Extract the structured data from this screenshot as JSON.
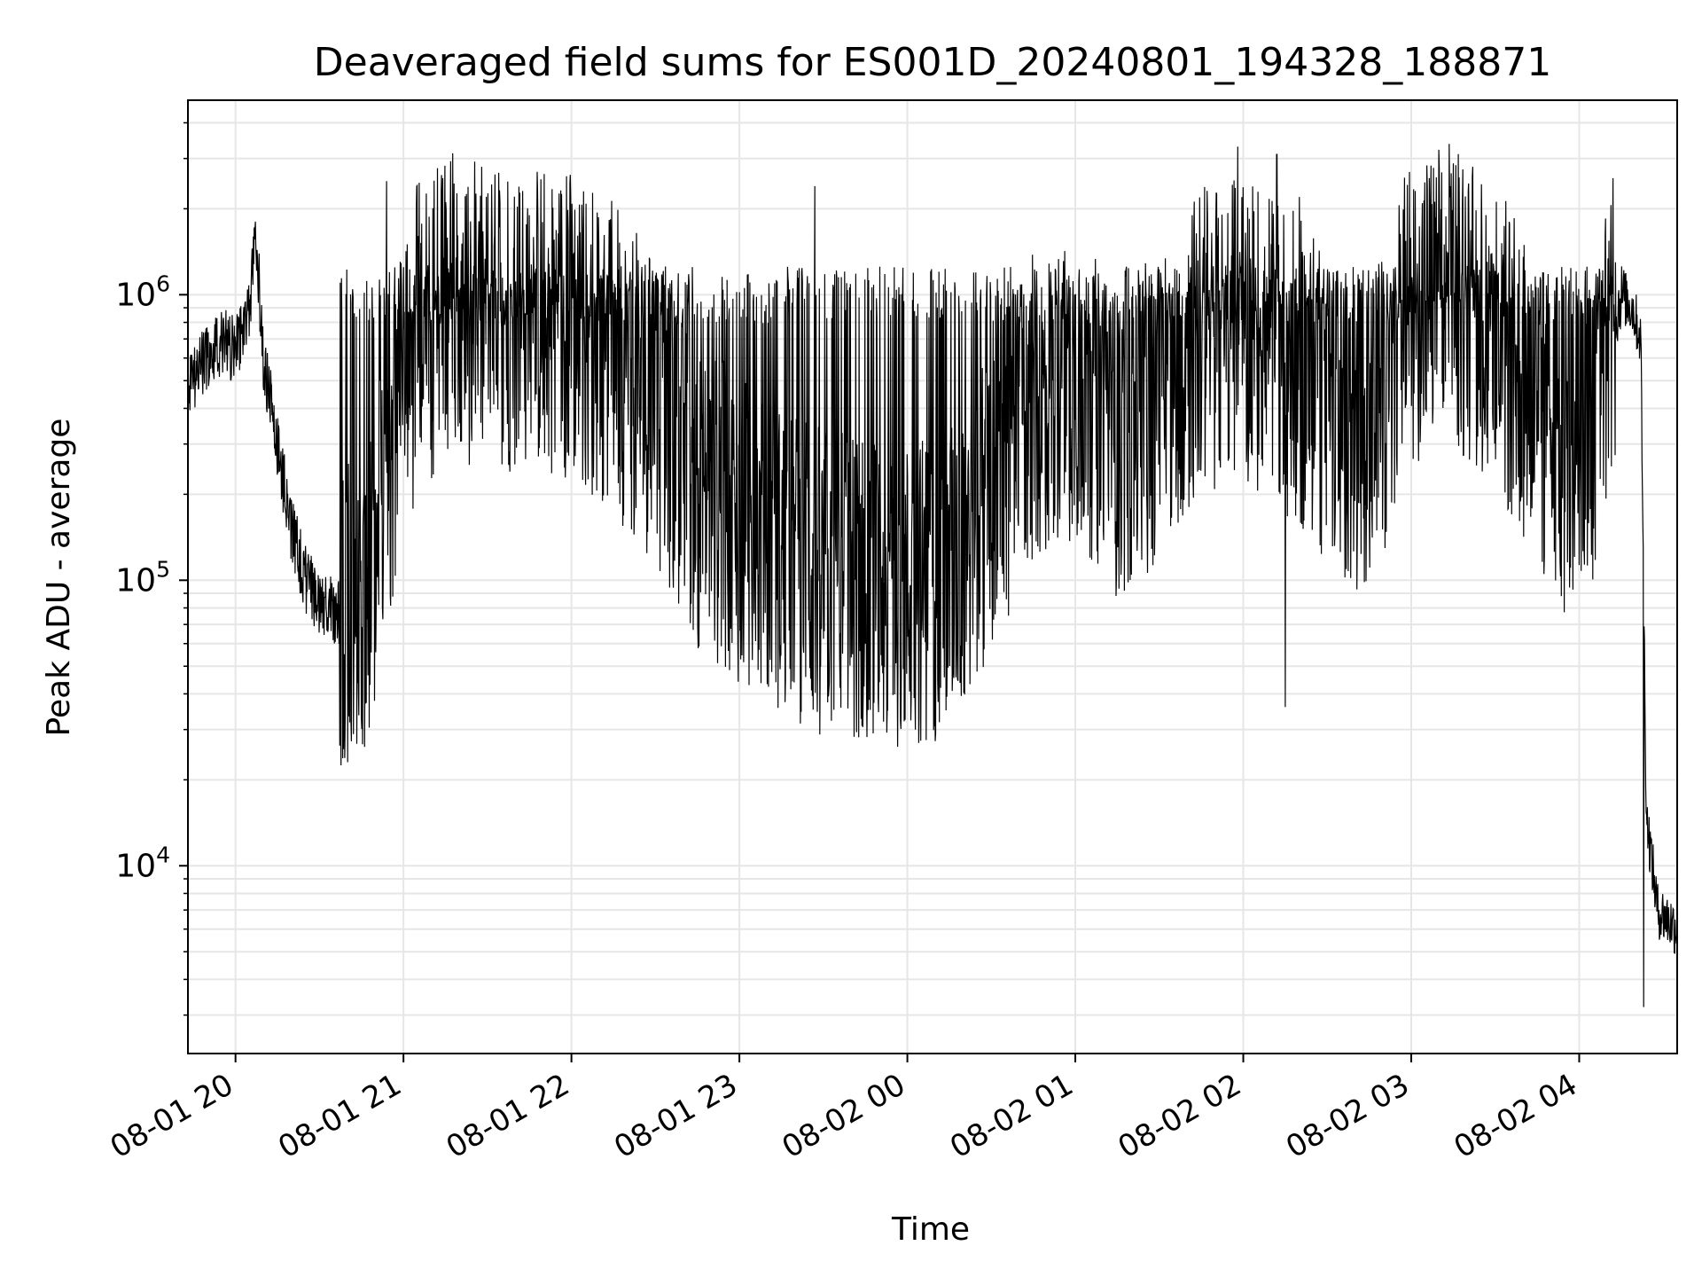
{
  "chart_data": {
    "type": "line",
    "title": "Deaveraged field sums for ES001D_20240801_194328_188871",
    "xlabel": "Time",
    "ylabel": "Peak ADU - average",
    "yscale": "log",
    "ylim": [
      2200,
      4800000
    ],
    "xlim": [
      "2024-08-01 19:43",
      "2024-08-02 04:35"
    ],
    "grid": true,
    "x_ticks": [
      {
        "time": "2024-08-01 20:00",
        "label": "08-01 20"
      },
      {
        "time": "2024-08-01 21:00",
        "label": "08-01 21"
      },
      {
        "time": "2024-08-01 22:00",
        "label": "08-01 22"
      },
      {
        "time": "2024-08-01 23:00",
        "label": "08-01 23"
      },
      {
        "time": "2024-08-02 00:00",
        "label": "08-02 00"
      },
      {
        "time": "2024-08-02 01:00",
        "label": "08-02 01"
      },
      {
        "time": "2024-08-02 02:00",
        "label": "08-02 02"
      },
      {
        "time": "2024-08-02 03:00",
        "label": "08-02 03"
      },
      {
        "time": "2024-08-02 04:00",
        "label": "08-02 04"
      }
    ],
    "y_ticks": [
      {
        "value": 10000,
        "base": "10",
        "exp": "4"
      },
      {
        "value": 100000,
        "base": "10",
        "exp": "5"
      },
      {
        "value": 1000000,
        "base": "10",
        "exp": "6"
      }
    ],
    "series": [
      {
        "color": "#000000",
        "x": [
          "2024-08-01 19:43",
          "2024-08-01 19:50",
          "2024-08-01 19:55",
          "2024-08-01 20:00",
          "2024-08-01 20:05",
          "2024-08-01 20:07",
          "2024-08-01 20:10",
          "2024-08-01 20:15",
          "2024-08-01 20:20",
          "2024-08-01 20:25",
          "2024-08-01 20:30",
          "2024-08-01 20:35",
          "2024-08-01 20:40",
          "2024-08-01 20:48",
          "2024-08-01 20:55",
          "2024-08-01 21:05",
          "2024-08-01 21:15",
          "2024-08-01 21:30",
          "2024-08-01 21:45",
          "2024-08-01 22:00",
          "2024-08-01 22:15",
          "2024-08-01 22:30",
          "2024-08-01 22:45",
          "2024-08-01 23:00",
          "2024-08-01 23:15",
          "2024-08-01 23:30",
          "2024-08-01 23:45",
          "2024-08-02 00:00",
          "2024-08-02 00:15",
          "2024-08-02 00:30",
          "2024-08-02 00:45",
          "2024-08-02 01:00",
          "2024-08-02 01:15",
          "2024-08-02 01:30",
          "2024-08-02 01:45",
          "2024-08-02 02:00",
          "2024-08-02 02:15",
          "2024-08-02 02:30",
          "2024-08-02 02:45",
          "2024-08-02 03:00",
          "2024-08-02 03:15",
          "2024-08-02 03:30",
          "2024-08-02 03:45",
          "2024-08-02 03:55",
          "2024-08-02 04:05",
          "2024-08-02 04:10",
          "2024-08-02 04:15",
          "2024-08-02 04:19",
          "2024-08-02 04:22",
          "2024-08-02 04:24",
          "2024-08-02 04:28",
          "2024-08-02 04:35"
        ],
        "y": [
          480000,
          620000,
          680000,
          650000,
          900000,
          1800000,
          600000,
          300000,
          150000,
          100000,
          85000,
          78000,
          80000,
          90000,
          250000,
          700000,
          900000,
          800000,
          850000,
          800000,
          600000,
          400000,
          200000,
          150000,
          120000,
          100000,
          95000,
          90000,
          100000,
          200000,
          400000,
          500000,
          300000,
          400000,
          700000,
          800000,
          600000,
          400000,
          300000,
          900000,
          1000000,
          700000,
          400000,
          250000,
          350000,
          600000,
          1000000,
          900000,
          700000,
          15000,
          7000,
          6000
        ],
        "spikes": [
          {
            "x": "2024-08-01 20:54",
            "y": 2500000
          },
          {
            "x": "2024-08-01 21:18",
            "y": 2450000
          },
          {
            "x": "2024-08-01 21:27",
            "y": 1800000
          },
          {
            "x": "2024-08-01 21:45",
            "y": 1900000
          },
          {
            "x": "2024-08-01 23:27",
            "y": 2400000
          },
          {
            "x": "2024-08-02 01:58",
            "y": 3300000
          },
          {
            "x": "2024-08-02 02:12",
            "y": 3100000
          },
          {
            "x": "2024-08-02 02:20",
            "y": 2200000
          },
          {
            "x": "2024-08-02 03:14",
            "y": 2400000
          },
          {
            "x": "2024-08-02 03:35",
            "y": 1800000
          },
          {
            "x": "2024-08-02 04:13",
            "y": 1300000
          },
          {
            "x": "2024-08-02 02:15",
            "y": 36000
          },
          {
            "x": "2024-08-02 04:23",
            "y": 3200
          },
          {
            "x": "2024-08-01 23:36",
            "y": 42000
          },
          {
            "x": "2024-08-01 20:48",
            "y": 43000
          }
        ]
      }
    ]
  }
}
